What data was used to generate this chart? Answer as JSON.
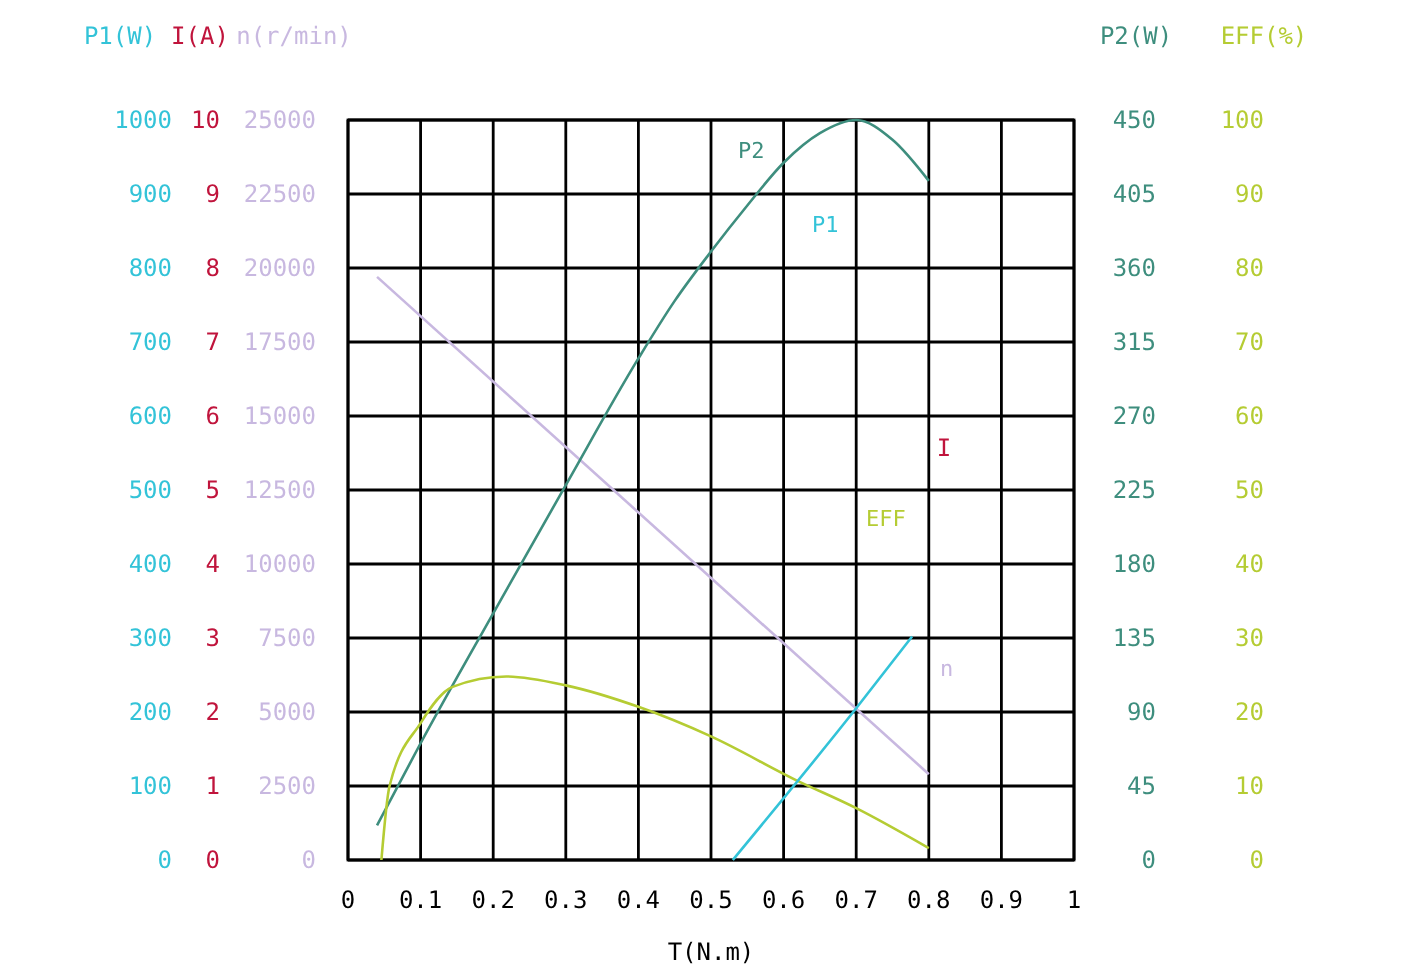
{
  "chart_data": [
    {
      "type": "line",
      "xlabel": "T(N.m)",
      "ylabel": "n(r/min)",
      "y2label": "P2(W)",
      "xlim": [
        0,
        1
      ],
      "xticks": [
        0,
        0.1,
        0.2,
        0.3,
        0.4,
        0.5,
        0.6,
        0.7,
        0.8,
        0.9,
        1
      ],
      "ylim": [
        0,
        25000
      ],
      "yticks": [
        0,
        2500,
        5000,
        7500,
        10000,
        12500,
        15000,
        17500,
        20000,
        22500,
        25000
      ],
      "y2lim": [
        0,
        450
      ],
      "y2ticks": [
        0,
        45,
        90,
        135,
        180,
        225,
        270,
        315,
        360,
        405,
        450
      ],
      "grid": true,
      "series": [
        {
          "name": "n",
          "color": "#c8b8e0",
          "x": [
            0.04,
            0.8
          ],
          "values": [
            19700,
            2900
          ]
        },
        {
          "name": "P2",
          "axis": "y2",
          "color": "#3e8e7e",
          "x": [
            0.04,
            0.1,
            0.2,
            0.3,
            0.4,
            0.45,
            0.5,
            0.55,
            0.6,
            0.65,
            0.7,
            0.75,
            0.8
          ],
          "values": [
            21,
            71,
            150,
            228,
            305,
            340,
            370,
            398,
            424,
            442,
            450,
            438,
            413
          ]
        }
      ]
    },
    {
      "type": "line",
      "ylabel": "I(A)",
      "y2label": "EFF(%)",
      "y3label": "P1(W)",
      "tick_labels": "y",
      "xlim": [
        0,
        1
      ],
      "ylim": [
        0,
        10
      ],
      "yticks": [
        0,
        1,
        2,
        3,
        4,
        5,
        6,
        7,
        8,
        9,
        10
      ],
      "y2lim": [
        0,
        100
      ],
      "y2ticks": [
        0,
        10,
        20,
        30,
        40,
        50,
        60,
        70,
        80,
        90,
        100
      ],
      "y3lim": [
        0,
        1000
      ],
      "y3ticks": [
        0,
        100,
        200,
        300,
        400,
        500,
        600,
        700,
        800,
        900,
        1000
      ],
      "series": [
        {
          "name": "EFF",
          "axis": "y2",
          "color": "#b5cc33",
          "x": [
            0.046,
            0.057,
            0.1,
            0.144,
            0.218,
            0.3,
            0.4,
            0.5,
            0.617,
            0.7,
            0.8
          ],
          "values": [
            0,
            9.9,
            18.5,
            23.4,
            24.8,
            23.6,
            20.7,
            16.7,
            10.8,
            7.0,
            1.6
          ]
        },
        {
          "name": "P1",
          "axis": "y3",
          "color": "#33c3d8",
          "x": [
            0.53,
            0.7,
            0.777
          ],
          "values": [
            0,
            205,
            302
          ]
        }
      ],
      "annotations": [
        "I"
      ]
    }
  ]
}
